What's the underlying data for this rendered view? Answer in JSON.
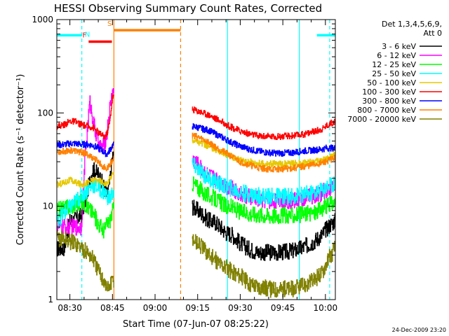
{
  "chart_data": {
    "type": "line",
    "title": "HESSI Observing Summary Count Rates, Corrected",
    "xlabel": "Start Time (07-Jun-07 08:25:22)",
    "ylabel": "Corrected Count Rate (s⁻¹ detector⁻¹)",
    "timestamp": "24-Dec-2009 23:20",
    "x_ticks": [
      "08:30",
      "08:45",
      "09:00",
      "09:15",
      "09:30",
      "09:45",
      "10:00"
    ],
    "x_tick_minutes": [
      30,
      45,
      60,
      75,
      90,
      105,
      120
    ],
    "y_ticks": [
      "1",
      "10",
      "100",
      "1000"
    ],
    "y_tick_values": [
      1,
      10,
      100,
      1000
    ],
    "xlim_minutes": [
      25.4,
      123.5
    ],
    "ylim": [
      1,
      1000
    ],
    "y_scale": "log",
    "legend": {
      "header": [
        "Det 1,3,4,5,6,9,",
        "Att 0"
      ],
      "placement": "right",
      "entries": [
        "3 - 6 keV",
        "6 - 12 keV",
        "12 - 25 keV",
        "25 - 50 keV",
        "50 - 100 keV",
        "100 - 300 keV",
        "300 - 800 keV",
        "800 - 7000 keV",
        "7000 - 20000 keV"
      ]
    },
    "flags": [
      {
        "label": "F",
        "color": "#ff0000",
        "start": 36.6,
        "end": 44.8,
        "value": 580
      },
      {
        "label": "N",
        "color": "#00ffff",
        "start": 25.4,
        "end": 34.2,
        "value": 680
      },
      {
        "label": "N",
        "color": "#00ffff",
        "start": 117.0,
        "end": 123.5,
        "value": 680
      },
      {
        "label": "S",
        "color": "#ff8000",
        "start": 45.5,
        "end": 69.0,
        "value": 770
      }
    ],
    "vlines": [
      {
        "minute": 34.2,
        "color": "#00ffff",
        "style": "dashed"
      },
      {
        "minute": 45.5,
        "color": "#ff8000",
        "style": "solid"
      },
      {
        "minute": 69.0,
        "color": "#ff8000",
        "style": "dashed"
      },
      {
        "minute": 85.5,
        "color": "#00ffff",
        "style": "solid"
      },
      {
        "minute": 110.8,
        "color": "#00ffff",
        "style": "solid"
      },
      {
        "minute": 121.5,
        "color": "#00ffff",
        "style": "dashed"
      }
    ],
    "gap": [
      45.5,
      73.0
    ],
    "series": [
      {
        "name": "3 - 6 keV",
        "color": "#000000",
        "x": [
          25.4,
          28,
          30,
          32,
          34,
          36,
          38,
          40,
          42,
          43,
          44,
          45,
          73,
          75,
          77,
          79,
          81,
          83,
          85,
          87,
          90,
          93,
          96,
          100,
          104,
          108,
          112,
          116,
          119,
          120,
          122,
          123.5
        ],
        "y": [
          3.5,
          3.6,
          7,
          7.3,
          8,
          14,
          25,
          22,
          16,
          13,
          18,
          35,
          10,
          9,
          8,
          7,
          6.8,
          6,
          5.2,
          5,
          4,
          3.5,
          3.2,
          3.2,
          3.2,
          3.3,
          3.6,
          4.2,
          5,
          5.6,
          6.5,
          7
        ]
      },
      {
        "name": "6 - 12 keV",
        "color": "#ff00ff",
        "x": [
          25.4,
          34,
          35.5,
          37,
          38,
          39,
          40,
          41,
          42,
          43,
          44,
          45,
          73,
          75,
          77,
          79,
          81,
          83,
          85,
          87,
          90,
          93,
          96,
          100,
          104,
          108,
          112,
          116,
          119,
          120,
          122,
          123.5
        ],
        "y": [
          6,
          6,
          40,
          130,
          90,
          60,
          48,
          42,
          45,
          60,
          110,
          170,
          32,
          28,
          24,
          21,
          20,
          18,
          16.5,
          15.5,
          13.5,
          12.5,
          12,
          11.5,
          11.5,
          11.5,
          12,
          13,
          14,
          15,
          16,
          17
        ]
      },
      {
        "name": "12 - 25 keV",
        "color": "#00ff00",
        "x": [
          25.4,
          34,
          35,
          36,
          38,
          40,
          42,
          43,
          44,
          45,
          73,
          75,
          77,
          79,
          81,
          83,
          85,
          87,
          90,
          93,
          96,
          100,
          104,
          108,
          112,
          116,
          119,
          120,
          122,
          123.5
        ],
        "y": [
          9,
          11,
          11,
          10,
          8.5,
          6.5,
          5.5,
          6.5,
          7,
          9,
          18,
          16,
          14,
          13,
          12,
          11,
          10,
          9.8,
          8.8,
          8.4,
          8.2,
          8,
          8,
          8,
          8.2,
          8.5,
          9.5,
          9.8,
          10.5,
          11
        ]
      },
      {
        "name": "25 - 50 keV",
        "color": "#00ffff",
        "x": [
          25.4,
          34,
          36,
          38,
          40,
          42,
          43,
          44,
          45,
          73,
          75,
          77,
          79,
          81,
          83,
          85,
          87,
          90,
          93,
          96,
          100,
          104,
          108,
          112,
          116,
          119,
          120,
          122,
          123.5
        ],
        "y": [
          7,
          13,
          15,
          17,
          16,
          14,
          13,
          12,
          14,
          28,
          25,
          22,
          20,
          18.5,
          17,
          16,
          15.5,
          14,
          13.5,
          13,
          12.8,
          12.8,
          12.8,
          13.2,
          14,
          15,
          16,
          17,
          18
        ]
      },
      {
        "name": "50 - 100 keV",
        "color": "#e6c800",
        "x": [
          25.4,
          28,
          30,
          32,
          34,
          36,
          38,
          40,
          42,
          43,
          44,
          45,
          73,
          75,
          77,
          79,
          81,
          83,
          85,
          87,
          90,
          93,
          96,
          100,
          104,
          108,
          112,
          116,
          119,
          120,
          122,
          123.5
        ],
        "y": [
          17,
          18,
          19,
          18,
          17,
          18,
          19,
          19,
          18,
          17,
          20,
          22,
          52,
          49,
          46,
          43,
          41,
          38,
          36,
          34,
          31,
          30,
          29,
          28.5,
          28.5,
          28.5,
          29,
          30,
          31,
          32,
          34,
          36
        ]
      },
      {
        "name": "100 - 300 keV",
        "color": "#ff0000",
        "x": [
          25.4,
          28,
          30,
          32,
          34,
          36,
          38,
          40,
          42,
          43,
          44,
          45,
          73,
          75,
          77,
          79,
          81,
          83,
          85,
          87,
          90,
          93,
          96,
          100,
          104,
          108,
          112,
          116,
          119,
          120,
          122,
          123.5
        ],
        "y": [
          72,
          75,
          82,
          80,
          75,
          72,
          70,
          62,
          55,
          60,
          80,
          150,
          110,
          105,
          100,
          95,
          88,
          82,
          75,
          70,
          64,
          60,
          57,
          56,
          56,
          57,
          59,
          63,
          68,
          72,
          78,
          82
        ]
      },
      {
        "name": "300 - 800 keV",
        "color": "#0000ff",
        "x": [
          25.4,
          28,
          30,
          32,
          34,
          36,
          38,
          40,
          42,
          43,
          44,
          45,
          73,
          75,
          77,
          79,
          81,
          83,
          85,
          87,
          90,
          93,
          96,
          100,
          104,
          108,
          112,
          116,
          119,
          120,
          122,
          123.5
        ],
        "y": [
          45,
          46,
          47,
          47,
          46,
          46,
          45,
          42,
          38,
          36,
          40,
          45,
          72,
          70,
          67,
          65,
          60,
          56,
          52,
          48,
          44,
          41,
          39,
          37.5,
          37,
          37.5,
          39,
          40,
          41,
          42,
          42,
          42
        ]
      },
      {
        "name": "800 - 7000 keV",
        "color": "#ff8000",
        "x": [
          25.4,
          28,
          30,
          32,
          34,
          36,
          38,
          40,
          42,
          43,
          44,
          45,
          73,
          75,
          77,
          79,
          81,
          83,
          85,
          87,
          90,
          93,
          96,
          100,
          104,
          108,
          112,
          116,
          119,
          120,
          122,
          123.5
        ],
        "y": [
          38,
          39,
          40,
          39,
          38,
          36,
          33,
          30,
          26,
          25,
          28,
          32,
          58,
          55,
          52,
          48,
          44,
          40,
          37,
          34,
          30,
          28,
          26,
          25,
          25,
          25.5,
          26.5,
          28,
          29,
          30,
          32,
          33
        ]
      },
      {
        "name": "7000 - 20000 keV",
        "color": "#808000",
        "x": [
          25.4,
          28,
          30,
          32,
          34,
          36,
          38,
          40,
          42,
          43,
          44,
          45,
          73,
          75,
          77,
          79,
          81,
          83,
          85,
          87,
          90,
          93,
          96,
          100,
          104,
          108,
          112,
          116,
          119,
          120,
          122,
          123.5
        ],
        "y": [
          4.5,
          4.5,
          4.2,
          4,
          3.6,
          3.2,
          2.8,
          2,
          1.6,
          1.3,
          1.4,
          1.6,
          4.5,
          4,
          3.5,
          3,
          2.7,
          2.4,
          2.2,
          2,
          1.8,
          1.5,
          1.4,
          1.3,
          1.3,
          1.3,
          1.4,
          1.6,
          2,
          2.4,
          3,
          3.6
        ]
      }
    ]
  }
}
